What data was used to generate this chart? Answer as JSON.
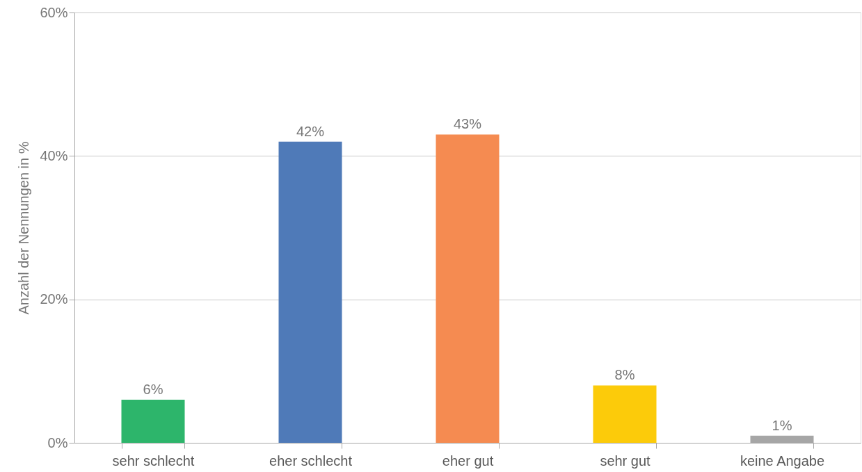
{
  "chart_data": {
    "type": "bar",
    "ylabel": "Anzahl der Nennungen in %",
    "categories": [
      "sehr schlecht",
      "eher schlecht",
      "eher gut",
      "sehr gut",
      "keine Angabe"
    ],
    "values": [
      6,
      42,
      43,
      8,
      1
    ],
    "colors": [
      "#2db56b",
      "#4f7ab8",
      "#f58b51",
      "#fccb0a",
      "#a6a6a6"
    ],
    "value_labels": [
      "6%",
      "42%",
      "43%",
      "8%",
      "1%"
    ],
    "ylim": [
      0,
      60
    ],
    "yticks": [
      {
        "value": 0,
        "label": "0%"
      },
      {
        "value": 20,
        "label": "20%"
      },
      {
        "value": 40,
        "label": "40%"
      },
      {
        "value": 60,
        "label": "60%"
      }
    ],
    "grid": "y"
  }
}
